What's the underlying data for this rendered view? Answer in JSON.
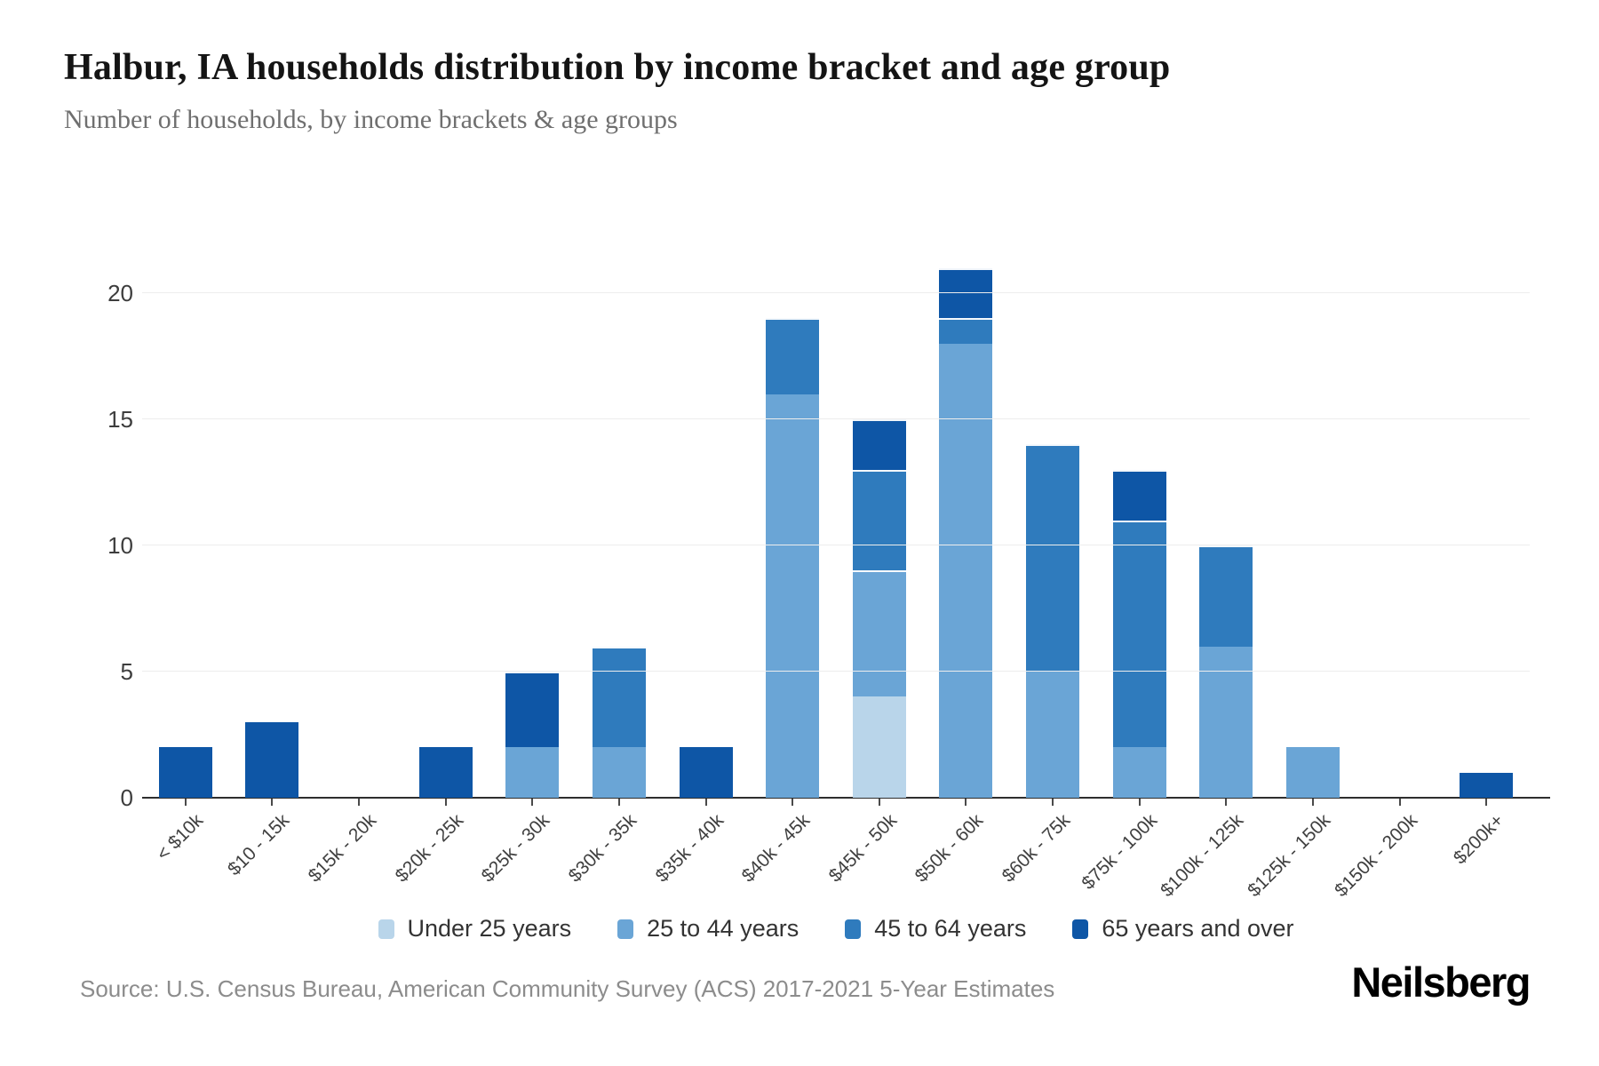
{
  "header": {
    "title": "Halbur, IA households distribution by income bracket and age group",
    "subtitle": "Number of households, by income brackets & age groups"
  },
  "chart_data": {
    "type": "bar",
    "stacked": true,
    "title": "Halbur, IA households distribution by income bracket and age group",
    "subtitle": "Number of households, by income brackets & age groups",
    "xlabel": "",
    "ylabel": "",
    "categories": [
      "< $10k",
      "$10 - 15k",
      "$15k - 20k",
      "$20k - 25k",
      "$25k - 30k",
      "$30k - 35k",
      "$35k - 40k",
      "$40k - 45k",
      "$45k - 50k",
      "$50k - 60k",
      "$60k - 75k",
      "$75k - 100k",
      "$100k - 125k",
      "$125k - 150k",
      "$150k - 200k",
      "$200k+"
    ],
    "series": [
      {
        "name": "Under 25 years",
        "color": "#b9d5ea",
        "values": [
          0,
          0,
          0,
          0,
          0,
          0,
          0,
          0,
          4,
          0,
          0,
          0,
          0,
          0,
          0,
          0
        ]
      },
      {
        "name": "25 to 44 years",
        "color": "#6aa5d6",
        "values": [
          0,
          0,
          0,
          0,
          2,
          2,
          0,
          16,
          5,
          18,
          5,
          2,
          6,
          2,
          0,
          0
        ]
      },
      {
        "name": "45 to 64 years",
        "color": "#2f7bbd",
        "values": [
          0,
          0,
          0,
          0,
          0,
          4,
          0,
          3,
          4,
          1,
          9,
          9,
          4,
          0,
          0,
          0
        ]
      },
      {
        "name": "65 years and over",
        "color": "#0e56a6",
        "values": [
          2,
          3,
          0,
          2,
          3,
          0,
          2,
          0,
          2,
          2,
          0,
          2,
          0,
          0,
          0,
          1
        ]
      }
    ],
    "totals": [
      2,
      3,
      0,
      2,
      5,
      6,
      2,
      19,
      15,
      21,
      14,
      13,
      10,
      2,
      0,
      1
    ],
    "y_ticks": [
      0,
      5,
      10,
      15,
      20
    ],
    "ylim": [
      0,
      21
    ],
    "grid": true,
    "gridline_color": "#ededed",
    "legend_position": "bottom"
  },
  "footer": {
    "source": "Source: U.S. Census Bureau, American Community Survey (ACS) 2017-2021 5-Year Estimates",
    "brand": "Neilsberg"
  }
}
